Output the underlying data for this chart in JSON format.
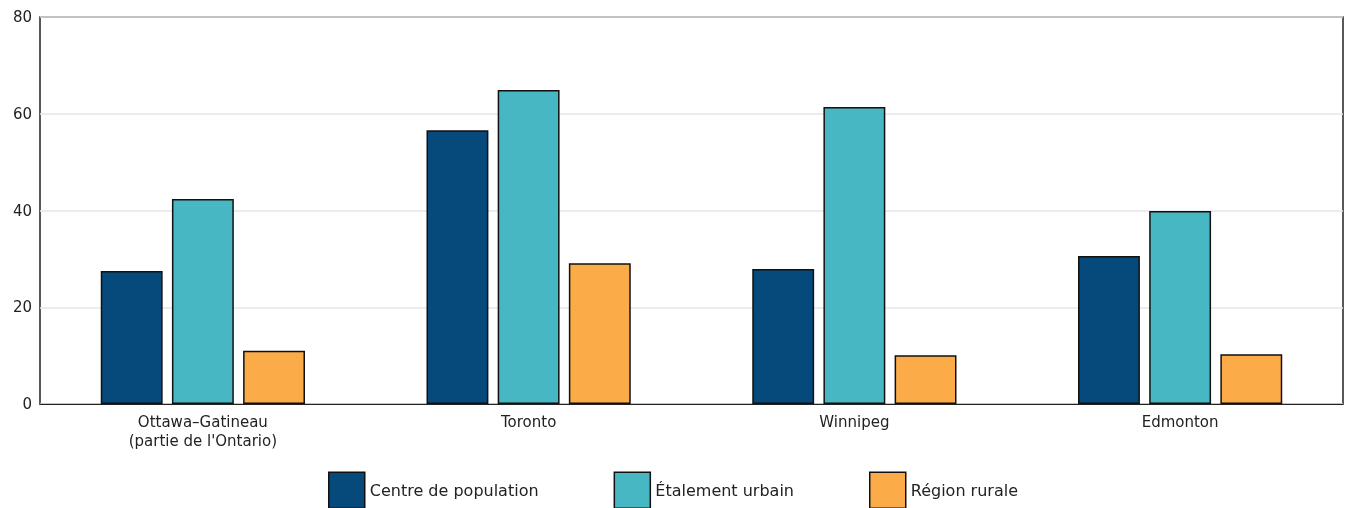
{
  "chart_data": {
    "type": "bar",
    "categories": [
      "Ottawa–Gatineau\n(partie de l'Ontario)",
      "Toronto",
      "Winnipeg",
      "Edmonton"
    ],
    "series": [
      {
        "name": "Centre de population",
        "color": "#054a7b",
        "values": [
          27.5,
          56.6,
          27.9,
          30.6
        ]
      },
      {
        "name": "Étalement urbain",
        "color": "#46b7c3",
        "values": [
          42.4,
          64.9,
          61.4,
          39.9
        ]
      },
      {
        "name": "Région rurale",
        "color": "#fbab48",
        "values": [
          11.0,
          29.1,
          10.1,
          10.3
        ]
      }
    ],
    "ylim": [
      0,
      80
    ],
    "yticks": [
      0,
      20,
      40,
      60,
      80
    ],
    "grid": "y",
    "legend": "bottom"
  }
}
